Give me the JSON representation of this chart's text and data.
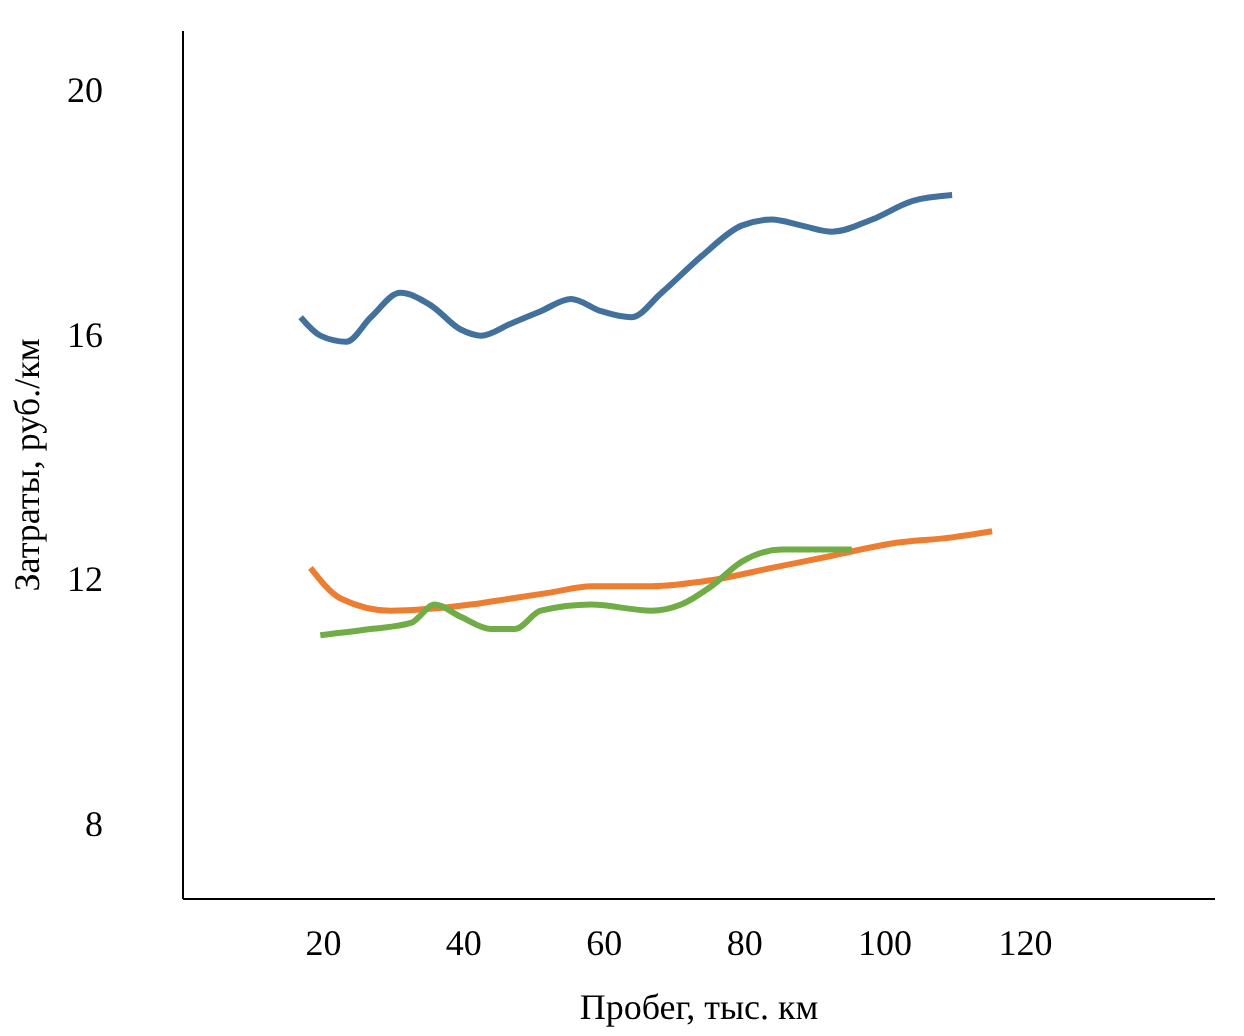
{
  "chart_data": {
    "type": "line",
    "xlabel": "Пробег, тыс. км",
    "ylabel": "Затраты, руб./км",
    "xlim": [
      0,
      147
    ],
    "xticks": [
      20,
      40,
      60,
      80,
      100,
      120
    ],
    "ylim": [
      6.8,
      21
    ],
    "yticks": [
      8,
      12,
      16,
      20
    ],
    "grid": false,
    "marker": "none",
    "line_style": "solid",
    "series": [
      {
        "color": "#41719c",
        "x": [
          16.9,
          19.7,
          23.4,
          26.9,
          31.1,
          35.4,
          39.7,
          42.6,
          46.9,
          51.1,
          55.4,
          59.7,
          64,
          68.3,
          74,
          79.7,
          84,
          88.3,
          92.6,
          98.3,
          104,
          109.7
        ],
        "values": [
          16.3,
          16.0,
          15.9,
          16.3,
          16.7,
          16.5,
          16.1,
          16.0,
          16.2,
          16.4,
          16.6,
          16.4,
          16.3,
          16.7,
          17.3,
          17.8,
          17.9,
          17.8,
          17.7,
          17.9,
          18.2,
          18.3
        ]
      },
      {
        "color": "#ed7d31",
        "x": [
          18.3,
          22.6,
          29.7,
          41.1,
          46.9,
          52.6,
          58.3,
          66.9,
          75.4,
          84,
          92.6,
          101.1,
          109.7,
          115.4
        ],
        "values": [
          12.2,
          11.7,
          11.5,
          11.6,
          11.7,
          11.8,
          11.9,
          11.9,
          12.0,
          12.2,
          12.4,
          12.6,
          12.7,
          12.8
        ]
      },
      {
        "color": "#70ad47",
        "x": [
          19.7,
          26.9,
          32.6,
          36,
          39.7,
          44,
          47.4,
          51.1,
          58.3,
          66.9,
          71.1,
          75.4,
          79.7,
          85.4,
          95.4
        ],
        "values": [
          11.1,
          11.2,
          11.3,
          11.6,
          11.4,
          11.2,
          11.2,
          11.5,
          11.6,
          11.5,
          11.6,
          11.9,
          12.3,
          12.5,
          12.5
        ]
      }
    ]
  }
}
